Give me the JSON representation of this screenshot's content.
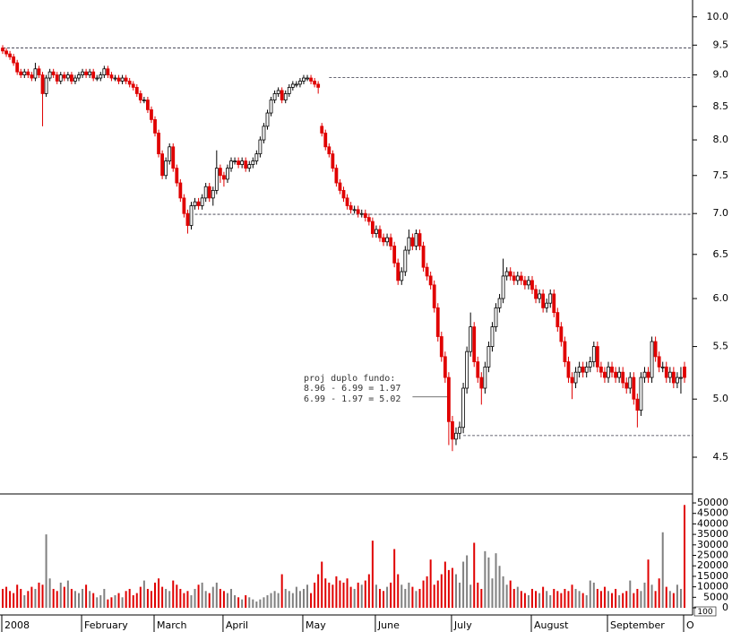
{
  "chart_data": {
    "type": "candlestick",
    "log_y": true,
    "categories": [
      "2008",
      null,
      null,
      null,
      null,
      null,
      null,
      null,
      null,
      null,
      null,
      null,
      null,
      null,
      null,
      null,
      null,
      null,
      null,
      null,
      null,
      null,
      "February",
      null,
      null,
      null,
      null,
      null,
      null,
      null,
      null,
      null,
      null,
      null,
      null,
      null,
      null,
      null,
      null,
      null,
      null,
      null,
      "March",
      null,
      null,
      null,
      null,
      null,
      null,
      null,
      null,
      null,
      null,
      null,
      null,
      null,
      null,
      null,
      null,
      null,
      null,
      "April",
      null,
      null,
      null,
      null,
      null,
      null,
      null,
      null,
      null,
      null,
      null,
      null,
      null,
      null,
      null,
      null,
      null,
      null,
      null,
      null,
      null,
      "May",
      null,
      null,
      null,
      null,
      null,
      null,
      null,
      null,
      null,
      null,
      null,
      null,
      null,
      null,
      null,
      null,
      null,
      null,
      null,
      "June",
      null,
      null,
      null,
      null,
      null,
      null,
      null,
      null,
      null,
      null,
      null,
      null,
      null,
      null,
      null,
      null,
      null,
      null,
      null,
      null,
      "July",
      null,
      null,
      null,
      null,
      null,
      null,
      null,
      null,
      null,
      null,
      null,
      null,
      null,
      null,
      null,
      null,
      null,
      null,
      null,
      null,
      null,
      "August",
      null,
      null,
      null,
      null,
      null,
      null,
      null,
      null,
      null,
      null,
      null,
      null,
      null,
      null,
      null,
      null,
      null,
      null,
      null,
      null,
      "September",
      null,
      null,
      null,
      null,
      null,
      null,
      null,
      null,
      null,
      null,
      null,
      null,
      null,
      null,
      null,
      null,
      null,
      null,
      null,
      null,
      "O"
    ],
    "open": [
      9.45,
      9.4,
      9.35,
      9.3,
      9.2,
      9.05,
      9.0,
      9.05,
      9.0,
      8.95,
      9.1,
      9.0,
      8.7,
      8.95,
      9.05,
      9.0,
      8.9,
      9.0,
      8.95,
      9.0,
      8.9,
      8.95,
      9.0,
      9.05,
      9.0,
      9.05,
      8.95,
      8.95,
      9.0,
      9.1,
      9.0,
      8.95,
      8.95,
      8.9,
      8.95,
      8.9,
      8.85,
      8.8,
      8.7,
      8.6,
      8.6,
      8.45,
      8.3,
      8.1,
      7.8,
      7.5,
      7.7,
      7.9,
      7.6,
      7.4,
      7.2,
      7.0,
      6.85,
      7.1,
      7.15,
      7.1,
      7.2,
      7.35,
      7.2,
      7.3,
      7.6,
      7.5,
      7.45,
      7.6,
      7.7,
      7.7,
      7.65,
      7.7,
      7.6,
      7.65,
      7.7,
      7.8,
      8.0,
      8.2,
      8.4,
      8.6,
      8.7,
      8.75,
      8.6,
      8.7,
      8.8,
      8.85,
      8.85,
      8.9,
      8.95,
      8.95,
      8.9,
      8.85,
      8.2,
      8.1,
      7.9,
      7.8,
      7.6,
      7.4,
      7.3,
      7.2,
      7.1,
      7.05,
      7.05,
      7.0,
      7.0,
      6.95,
      6.9,
      6.75,
      6.8,
      6.7,
      6.65,
      6.7,
      6.6,
      6.4,
      6.2,
      6.3,
      6.55,
      6.7,
      6.6,
      6.75,
      6.6,
      6.35,
      6.25,
      6.15,
      5.9,
      5.6,
      5.4,
      5.2,
      4.8,
      4.65,
      4.7,
      4.75,
      5.1,
      5.45,
      5.7,
      5.35,
      5.2,
      5.1,
      5.3,
      5.5,
      5.7,
      5.9,
      6.0,
      6.25,
      6.3,
      6.25,
      6.2,
      6.25,
      6.2,
      6.15,
      6.2,
      6.1,
      6.0,
      6.05,
      5.9,
      5.95,
      6.05,
      5.85,
      5.7,
      5.55,
      5.35,
      5.2,
      5.15,
      5.25,
      5.3,
      5.25,
      5.3,
      5.35,
      5.5,
      5.3,
      5.25,
      5.2,
      5.3,
      5.25,
      5.2,
      5.25,
      5.15,
      5.1,
      5.2,
      5.0,
      4.9,
      5.2,
      5.25,
      5.2,
      5.55,
      5.4,
      5.3,
      5.3,
      5.2,
      5.25,
      5.15,
      5.2,
      5.3
    ],
    "high": [
      9.5,
      9.45,
      9.4,
      9.35,
      9.25,
      9.1,
      9.1,
      9.1,
      9.05,
      9.2,
      9.15,
      9.05,
      9.0,
      9.1,
      9.1,
      9.05,
      9.05,
      9.05,
      9.05,
      9.05,
      9.0,
      9.05,
      9.1,
      9.1,
      9.1,
      9.1,
      9.0,
      9.05,
      9.15,
      9.15,
      9.05,
      9.0,
      9.0,
      9.0,
      9.0,
      8.95,
      8.9,
      8.85,
      8.75,
      8.65,
      8.65,
      8.5,
      8.35,
      8.15,
      7.85,
      7.75,
      7.95,
      7.95,
      7.65,
      7.45,
      7.25,
      7.05,
      7.15,
      7.2,
      7.2,
      7.25,
      7.4,
      7.4,
      7.35,
      7.85,
      7.65,
      7.55,
      7.65,
      7.75,
      7.75,
      7.75,
      7.75,
      7.75,
      7.7,
      7.75,
      7.85,
      8.05,
      8.25,
      8.45,
      8.65,
      8.75,
      8.8,
      8.8,
      8.75,
      8.85,
      8.9,
      8.9,
      8.95,
      9.0,
      9.0,
      9.0,
      8.95,
      8.9,
      8.25,
      8.15,
      7.95,
      7.85,
      7.65,
      7.45,
      7.35,
      7.25,
      7.15,
      7.1,
      7.1,
      7.05,
      7.05,
      7.0,
      6.95,
      6.85,
      6.85,
      6.75,
      6.75,
      6.75,
      6.65,
      6.45,
      6.35,
      6.6,
      6.8,
      6.75,
      6.8,
      6.8,
      6.65,
      6.4,
      6.3,
      6.2,
      5.95,
      5.65,
      5.45,
      5.25,
      4.85,
      4.75,
      4.8,
      5.15,
      5.5,
      5.85,
      5.75,
      5.4,
      5.25,
      5.35,
      5.55,
      5.75,
      5.95,
      6.05,
      6.45,
      6.35,
      6.35,
      6.3,
      6.3,
      6.3,
      6.25,
      6.25,
      6.25,
      6.15,
      6.1,
      6.1,
      6.0,
      6.1,
      6.1,
      5.9,
      5.75,
      5.6,
      5.4,
      5.25,
      5.3,
      5.35,
      5.35,
      5.35,
      5.4,
      5.55,
      5.55,
      5.35,
      5.3,
      5.35,
      5.35,
      5.3,
      5.3,
      5.3,
      5.2,
      5.25,
      5.25,
      5.05,
      5.25,
      5.3,
      5.3,
      5.6,
      5.6,
      5.45,
      5.35,
      5.35,
      5.3,
      5.3,
      5.25,
      5.3,
      5.35
    ],
    "low": [
      9.35,
      9.3,
      9.25,
      9.15,
      9.0,
      8.95,
      8.95,
      8.95,
      8.9,
      8.9,
      8.95,
      8.2,
      8.65,
      8.9,
      8.95,
      8.85,
      8.85,
      8.9,
      8.9,
      8.85,
      8.85,
      8.9,
      8.95,
      8.95,
      8.95,
      8.9,
      8.9,
      8.9,
      8.95,
      8.95,
      8.9,
      8.9,
      8.85,
      8.85,
      8.85,
      8.8,
      8.75,
      8.65,
      8.55,
      8.55,
      8.4,
      8.25,
      8.05,
      7.75,
      7.45,
      7.45,
      7.65,
      7.55,
      7.35,
      7.15,
      6.95,
      6.75,
      6.8,
      7.05,
      7.05,
      7.05,
      7.15,
      7.15,
      7.1,
      7.25,
      7.4,
      7.35,
      7.4,
      7.55,
      7.65,
      7.6,
      7.6,
      7.55,
      7.55,
      7.6,
      7.65,
      7.75,
      7.95,
      8.15,
      8.35,
      8.55,
      8.65,
      8.55,
      8.55,
      8.65,
      8.75,
      8.8,
      8.8,
      8.85,
      8.9,
      8.85,
      8.8,
      8.7,
      8.05,
      7.85,
      7.75,
      7.55,
      7.35,
      7.25,
      7.15,
      7.05,
      7.0,
      7.0,
      6.95,
      6.95,
      6.9,
      6.85,
      6.7,
      6.7,
      6.65,
      6.6,
      6.6,
      6.55,
      6.35,
      6.15,
      6.15,
      6.25,
      6.5,
      6.55,
      6.55,
      6.55,
      6.3,
      6.2,
      6.1,
      5.85,
      5.55,
      5.35,
      5.15,
      4.6,
      4.55,
      4.6,
      4.65,
      4.7,
      5.05,
      5.4,
      5.3,
      5.15,
      4.95,
      5.05,
      5.25,
      5.45,
      5.65,
      5.85,
      5.95,
      6.2,
      6.2,
      6.15,
      6.15,
      6.15,
      6.1,
      6.1,
      6.05,
      5.95,
      5.95,
      5.85,
      5.85,
      5.9,
      5.8,
      5.65,
      5.5,
      5.3,
      5.15,
      5.0,
      5.1,
      5.2,
      5.2,
      5.2,
      5.25,
      5.3,
      5.25,
      5.2,
      5.15,
      5.15,
      5.2,
      5.15,
      5.15,
      5.1,
      5.05,
      5.05,
      4.95,
      4.75,
      4.85,
      5.15,
      5.15,
      5.15,
      5.35,
      5.25,
      5.25,
      5.15,
      5.15,
      5.1,
      5.1,
      5.05,
      5.15
    ],
    "close": [
      9.4,
      9.35,
      9.3,
      9.2,
      9.05,
      9.0,
      9.05,
      9.0,
      8.95,
      9.1,
      9.0,
      8.7,
      8.95,
      9.05,
      9.0,
      8.9,
      9.0,
      8.95,
      9.0,
      8.9,
      8.95,
      9.0,
      9.05,
      9.0,
      9.05,
      8.95,
      8.95,
      9.0,
      9.1,
      9.0,
      8.95,
      8.95,
      8.9,
      8.95,
      8.9,
      8.85,
      8.8,
      8.7,
      8.6,
      8.6,
      8.45,
      8.3,
      8.1,
      7.8,
      7.5,
      7.7,
      7.9,
      7.6,
      7.4,
      7.2,
      7.0,
      6.85,
      7.1,
      7.15,
      7.1,
      7.2,
      7.35,
      7.2,
      7.3,
      7.6,
      7.5,
      7.45,
      7.6,
      7.7,
      7.7,
      7.65,
      7.7,
      7.6,
      7.65,
      7.7,
      7.8,
      8.0,
      8.2,
      8.4,
      8.6,
      8.7,
      8.75,
      8.6,
      8.7,
      8.8,
      8.85,
      8.85,
      8.9,
      8.95,
      8.95,
      8.9,
      8.85,
      8.8,
      8.1,
      7.9,
      7.8,
      7.6,
      7.4,
      7.3,
      7.2,
      7.1,
      7.05,
      7.05,
      7.0,
      7.0,
      6.95,
      6.9,
      6.75,
      6.8,
      6.7,
      6.65,
      6.7,
      6.6,
      6.4,
      6.2,
      6.3,
      6.55,
      6.7,
      6.6,
      6.75,
      6.6,
      6.35,
      6.25,
      6.15,
      5.9,
      5.6,
      5.4,
      5.2,
      4.8,
      4.65,
      4.7,
      4.75,
      5.1,
      5.45,
      5.7,
      5.35,
      5.2,
      5.1,
      5.3,
      5.5,
      5.7,
      5.9,
      6.0,
      6.25,
      6.3,
      6.25,
      6.2,
      6.25,
      6.2,
      6.15,
      6.2,
      6.1,
      6.0,
      6.05,
      5.9,
      5.95,
      6.05,
      5.85,
      5.7,
      5.55,
      5.35,
      5.2,
      5.15,
      5.25,
      5.3,
      5.25,
      5.3,
      5.35,
      5.5,
      5.3,
      5.25,
      5.2,
      5.3,
      5.25,
      5.2,
      5.25,
      5.15,
      5.1,
      5.2,
      5.0,
      4.9,
      5.2,
      5.25,
      5.2,
      5.55,
      5.4,
      5.3,
      5.3,
      5.2,
      5.25,
      5.15,
      5.2,
      5.2,
      5.2
    ],
    "volume": [
      9000,
      10000,
      8000,
      7000,
      11000,
      9000,
      6000,
      8000,
      10000,
      9000,
      12000,
      11000,
      35000,
      14000,
      9000,
      8000,
      12000,
      10000,
      13000,
      9000,
      8000,
      7000,
      9000,
      11000,
      8000,
      7000,
      5000,
      6000,
      9000,
      4000,
      5000,
      6000,
      7000,
      5000,
      8000,
      9000,
      6000,
      7000,
      10000,
      13000,
      9000,
      8000,
      12000,
      14000,
      10000,
      9000,
      8000,
      13000,
      11000,
      9000,
      7000,
      8000,
      6000,
      9000,
      11000,
      12000,
      8000,
      7000,
      10000,
      12000,
      9000,
      8000,
      7000,
      9000,
      6000,
      5000,
      4000,
      6000,
      5000,
      4000,
      3000,
      4000,
      5000,
      6000,
      7000,
      8000,
      7000,
      16000,
      9000,
      8000,
      7000,
      10000,
      8000,
      9000,
      11000,
      7000,
      12000,
      16000,
      22000,
      14000,
      12000,
      11000,
      15000,
      13000,
      12000,
      14000,
      10000,
      9000,
      12000,
      11000,
      13000,
      16000,
      32000,
      11000,
      9000,
      8000,
      10000,
      12000,
      28000,
      16000,
      11000,
      9000,
      12000,
      10000,
      8000,
      9000,
      13000,
      15000,
      23000,
      11000,
      13000,
      16000,
      22000,
      18000,
      19000,
      16000,
      12000,
      22000,
      25000,
      11000,
      31000,
      12000,
      9000,
      27000,
      24000,
      14000,
      26000,
      20000,
      15000,
      11000,
      13000,
      9000,
      10000,
      8000,
      7000,
      6000,
      9000,
      8000,
      7000,
      10000,
      8000,
      6000,
      9000,
      8000,
      7000,
      9000,
      8000,
      11000,
      9000,
      8000,
      7000,
      6000,
      13000,
      12000,
      9000,
      8000,
      10000,
      8000,
      7000,
      9000,
      6000,
      7000,
      8000,
      13000,
      7000,
      9000,
      8000,
      12000,
      23000,
      11000,
      8000,
      14000,
      36000,
      10000,
      8000,
      7000,
      11000,
      9000,
      49000
    ],
    "up_color": "#ffffff",
    "down_color": "#e00000",
    "volume_up_color": "#808080",
    "ylim": [
      4.21,
      10.31
    ],
    "yticks": [
      4.5,
      {
        "value": 5,
        "label": "5.0"
      },
      5.5,
      {
        "value": 6,
        "label": "6.0"
      },
      6.5,
      {
        "value": 7,
        "label": "7.0"
      },
      7.5,
      {
        "value": 8,
        "label": "8.0"
      },
      8.5,
      {
        "value": 9,
        "label": "9.0"
      },
      9.5,
      {
        "value": 10,
        "label": "10.0"
      }
    ],
    "volume_ylim": [
      0,
      53000
    ],
    "volume_yticks": [
      0,
      5000,
      10000,
      15000,
      20000,
      25000,
      30000,
      35000,
      40000,
      45000,
      50000
    ],
    "volume_unit": "100",
    "reference_lines": [
      {
        "value": 9.45,
        "from": 0
      },
      {
        "value": 8.96,
        "from": 90
      },
      {
        "value": 6.99,
        "from": 53
      },
      {
        "value": 4.68,
        "from": 127
      },
      {
        "value": 5.02,
        "from": 113,
        "to": 123
      }
    ],
    "annotation": [
      "proj duplo fundo:",
      "8.96 - 6.99 = 1.97",
      "6.99 - 1.97 = 5.02"
    ]
  }
}
